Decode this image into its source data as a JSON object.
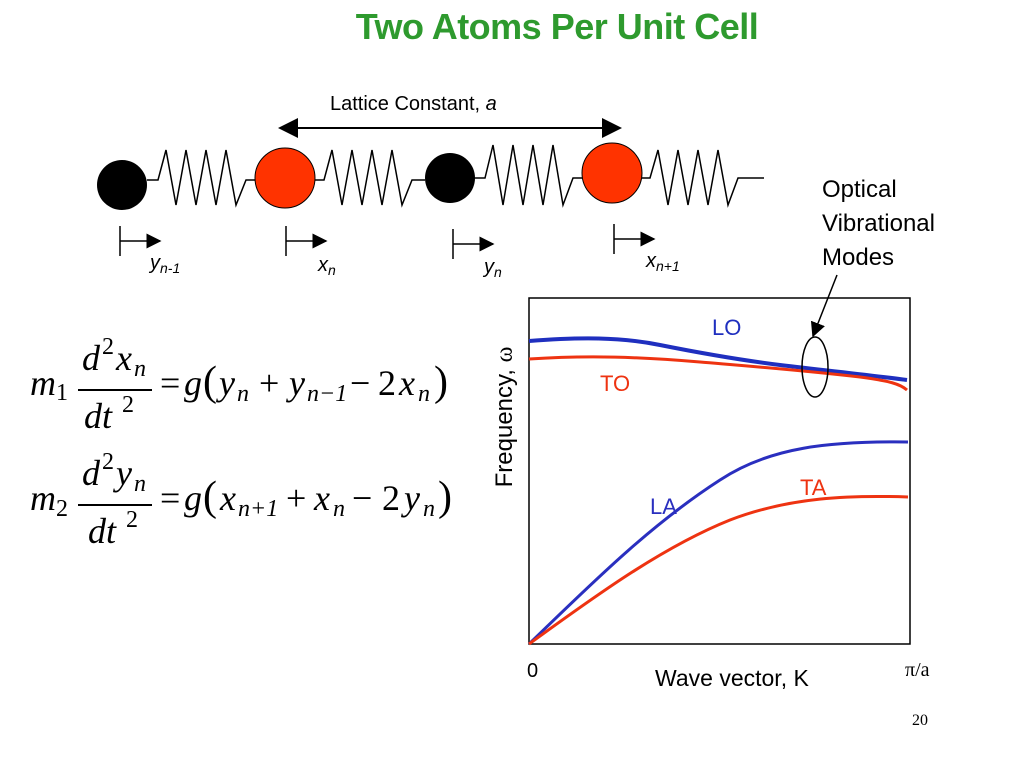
{
  "title": "Two Atoms Per Unit Cell",
  "lattice": {
    "label_text": "Lattice Constant, ",
    "label_symbol": "a"
  },
  "displacements": [
    {
      "base": "y",
      "sub": "n-1"
    },
    {
      "base": "x",
      "sub": "n"
    },
    {
      "base": "y",
      "sub": "n"
    },
    {
      "base": "x",
      "sub": "n+1"
    }
  ],
  "callout": {
    "lines": [
      "Optical",
      "Vibrational",
      "Modes"
    ]
  },
  "equations": {
    "eq1": {
      "m": "m",
      "m_sub": "1",
      "d_top": "d",
      "exp_top": "2",
      "var": "x",
      "var_sub": "n",
      "d_bot": "dt",
      "exp_bot": "2",
      "rhs_g": "g",
      "lp": "(",
      "rp": ")",
      "t1": "y",
      "t1_sub": "n",
      "plus": "+",
      "t2": "y",
      "t2_sub": "n−1",
      "minus": "−",
      "coef": "2",
      "t3": "x",
      "t3_sub": "n",
      "eq": "="
    },
    "eq2": {
      "m": "m",
      "m_sub": "2",
      "d_top": "d",
      "exp_top": "2",
      "var": "y",
      "var_sub": "n",
      "d_bot": "dt",
      "exp_bot": "2",
      "rhs_g": "g",
      "lp": "(",
      "rp": ")",
      "t1": "x",
      "t1_sub": "n+1",
      "plus": "+",
      "t2": "x",
      "t2_sub": "n",
      "minus": "−",
      "coef": "2",
      "t3": "y",
      "t3_sub": "n",
      "eq": "="
    }
  },
  "plot": {
    "ylabel": "Frequency, ",
    "ylabel_symbol": "ω",
    "xlabel": "Wave vector, K",
    "x_start": "0",
    "x_end": "π/a",
    "modes": [
      {
        "name": "LO",
        "color": "#1f2fbf"
      },
      {
        "name": "TO",
        "color": "#ee3311"
      },
      {
        "name": "LA",
        "color": "#2a2fbf"
      },
      {
        "name": "TA",
        "color": "#ee3311"
      }
    ]
  },
  "colors": {
    "title": "#2e9a2e",
    "light_atom": "#000000",
    "heavy_atom": "#ff3300",
    "optical_blue": "#1f2fbf",
    "red": "#ee3311"
  },
  "page_number": "20"
}
